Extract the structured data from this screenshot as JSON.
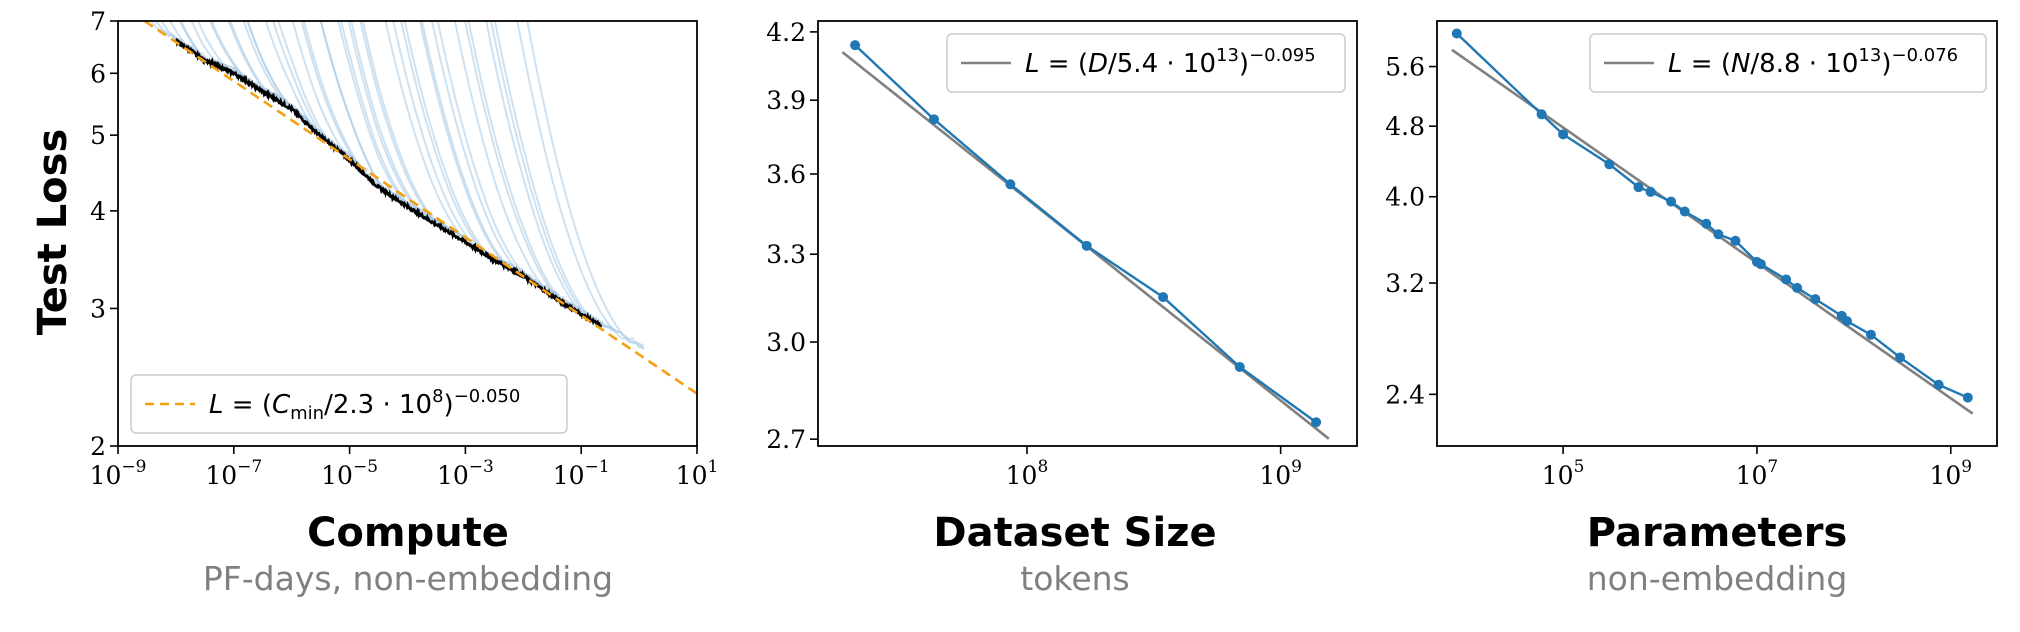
{
  "colors": {
    "run_curves": "#a6c8e3",
    "frontier": "#000000",
    "compute_fit": "#f5a011",
    "data_points": "#1f77b4",
    "fit_line": "#808080",
    "subtitle": "#808080"
  },
  "chart_data": [
    {
      "type": "line",
      "panel": "compute",
      "xlabel": "Compute",
      "xsub": "PF-days, non-embedding",
      "ylabel": "Test Loss",
      "xscale": "log",
      "yscale": "log",
      "xlim": [
        1e-09,
        10
      ],
      "ylim": [
        2,
        7
      ],
      "x_ticks": [
        {
          "base": "10",
          "exp": "−9"
        },
        {
          "base": "10",
          "exp": "−7"
        },
        {
          "base": "10",
          "exp": "−5"
        },
        {
          "base": "10",
          "exp": "−3"
        },
        {
          "base": "10",
          "exp": "−1"
        },
        {
          "base": "10",
          "exp": "1"
        }
      ],
      "y_ticks": [
        "2",
        "3",
        "4",
        "5",
        "6",
        "7"
      ],
      "legend": {
        "position": "lower-left",
        "entries": [
          {
            "style": "dashed",
            "pre": "L = (C",
            "sub": "min",
            "mid": "/2.3 · 10",
            "sup1": "8",
            "post": ")",
            "sup2": "−0.050"
          }
        ]
      },
      "fit": {
        "scale": 230000000.0,
        "exponent": -0.05
      },
      "frontier": {
        "x": [
          1e-08,
          3e-08,
          1e-07,
          3e-07,
          1e-06,
          3e-06,
          1e-05,
          3e-05,
          0.0001,
          0.0003,
          0.001,
          0.003,
          0.01,
          0.03,
          0.1,
          0.22
        ],
        "y": [
          6.6,
          6.25,
          6.0,
          5.7,
          5.4,
          5.0,
          4.65,
          4.3,
          4.05,
          3.85,
          3.65,
          3.47,
          3.3,
          3.12,
          2.95,
          2.85
        ]
      },
      "run_count": 45
    },
    {
      "type": "line",
      "panel": "dataset",
      "xlabel": "Dataset Size",
      "xsub": "tokens",
      "xscale": "log",
      "yscale": "log",
      "xlim": [
        15000000.0,
        2000000000.0
      ],
      "ylim": [
        2.68,
        4.25
      ],
      "x_ticks": [
        {
          "base": "10",
          "exp": "8",
          "value": 100000000.0
        },
        {
          "base": "10",
          "exp": "9",
          "value": 1000000000.0
        }
      ],
      "y_ticks": [
        "2.7",
        "3.0",
        "3.3",
        "3.6",
        "3.9",
        "4.2"
      ],
      "legend": {
        "position": "upper-right",
        "entries": [
          {
            "style": "solid",
            "pre": "L = (D/5.4 · 10",
            "sup1": "13",
            "post": ")",
            "sup2": "−0.095"
          }
        ]
      },
      "fit": {
        "scale": 54000000000000.0,
        "exponent": -0.095
      },
      "series": [
        {
          "x": [
            21000000.0,
            43000000.0,
            86000000.0,
            172000000.0,
            344000000.0,
            690000000.0,
            1380000000.0
          ],
          "y": [
            4.14,
            3.82,
            3.56,
            3.33,
            3.15,
            2.92,
            2.75
          ]
        }
      ]
    },
    {
      "type": "line",
      "panel": "parameters",
      "xlabel": "Parameters",
      "xsub": "non-embedding",
      "xscale": "log",
      "yscale": "log",
      "xlim": [
        5000.0,
        3000000000.0
      ],
      "ylim": [
        2.1,
        6.3
      ],
      "x_ticks": [
        {
          "base": "10",
          "exp": "5",
          "value": 100000.0
        },
        {
          "base": "10",
          "exp": "7",
          "value": 10000000.0
        },
        {
          "base": "10",
          "exp": "9",
          "value": 1000000000.0
        }
      ],
      "y_ticks": [
        "2.4",
        "3.2",
        "4.0",
        "4.8",
        "5.6"
      ],
      "legend": {
        "position": "upper-right",
        "entries": [
          {
            "style": "solid",
            "pre": "L = (N/8.8 · 10",
            "sup1": "13",
            "post": ")",
            "sup2": "−0.076"
          }
        ]
      },
      "fit": {
        "scale": 88000000000000.0,
        "exponent": -0.076
      },
      "series": [
        {
          "x": [
            8000.0,
            60000.0,
            100000.0,
            300000.0,
            600000.0,
            800000.0,
            1300000.0,
            1800000.0,
            3000000.0,
            4000000.0,
            6000000.0,
            10000000.0,
            11000000.0,
            20000000.0,
            26000000.0,
            40000000.0,
            75000000.0,
            85000000.0,
            150000000.0,
            300000000.0,
            750000000.0,
            1500000000.0
          ],
          "y": [
            6.1,
            4.95,
            4.7,
            4.35,
            4.1,
            4.05,
            3.95,
            3.85,
            3.73,
            3.63,
            3.57,
            3.38,
            3.36,
            3.23,
            3.16,
            3.07,
            2.94,
            2.9,
            2.8,
            2.64,
            2.46,
            2.38
          ]
        }
      ]
    }
  ]
}
